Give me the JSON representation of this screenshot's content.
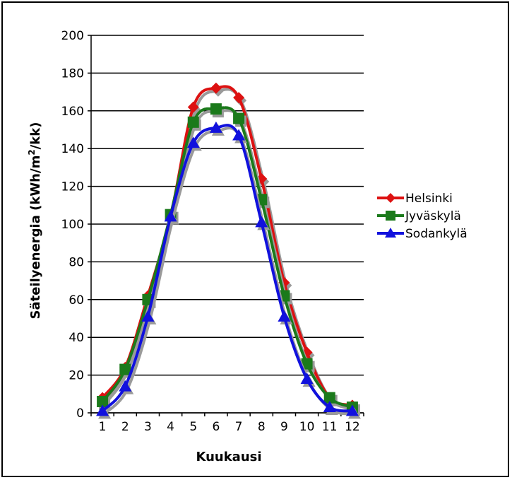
{
  "chart_data": {
    "type": "line",
    "xlabel": "Kuukausi",
    "ylabel_main": "Säteilyenergia (kWh/m",
    "ylabel_sup": "2",
    "ylabel_end": "/kk)",
    "ylim": [
      0,
      200
    ],
    "y_ticks": [
      "0",
      "20",
      "40",
      "60",
      "80",
      "100",
      "120",
      "140",
      "160",
      "180",
      "200"
    ],
    "categories": [
      "1",
      "2",
      "3",
      "4",
      "5",
      "6",
      "7",
      "8",
      "9",
      "10",
      "11",
      "12"
    ],
    "grid": "horizontal",
    "legend_position": "right",
    "series": [
      {
        "name": "Helsinki",
        "color": "#dd1111",
        "marker": "diamond",
        "values": [
          8,
          24,
          62,
          104,
          162,
          172,
          167,
          124,
          69,
          32,
          8,
          4
        ]
      },
      {
        "name": "Jyväskylä",
        "color": "#1b7a1b",
        "marker": "square",
        "values": [
          6,
          23,
          60,
          105,
          154,
          161,
          156,
          113,
          62,
          26,
          8,
          3
        ]
      },
      {
        "name": "Sodankylä",
        "color": "#1111dd",
        "marker": "triangle",
        "values": [
          1,
          14,
          51,
          104,
          143,
          151,
          147,
          101,
          51,
          18,
          3,
          1
        ]
      }
    ]
  }
}
